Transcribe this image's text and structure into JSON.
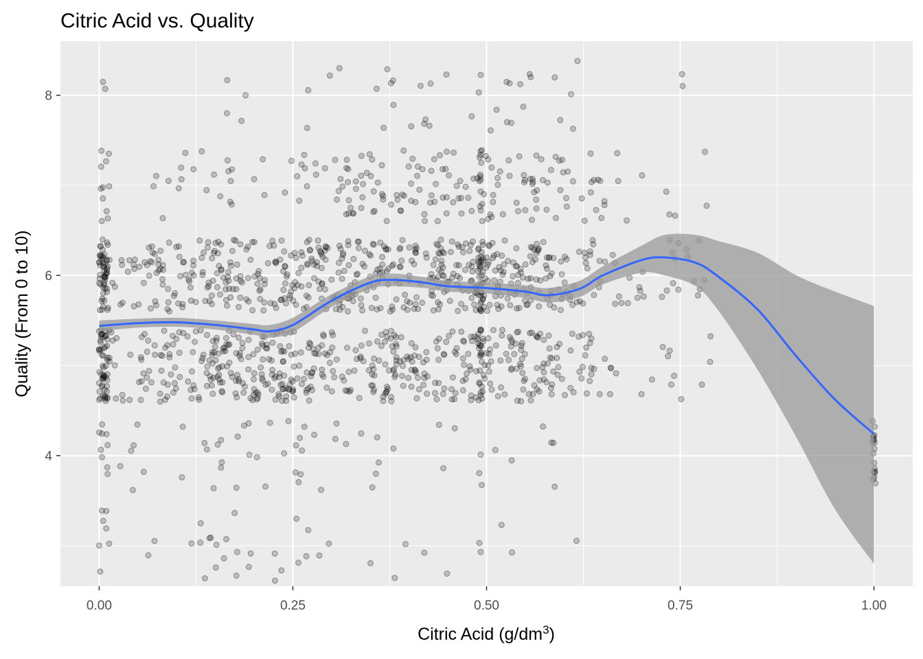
{
  "chart_data": {
    "type": "scatter",
    "title": "Citric Acid vs. Quality",
    "xlabel": "Citric Acid",
    "xlabel_unit": "(g/dm",
    "xlabel_unit_power": "3",
    "xlabel_unit_close": ")",
    "ylabel": "Quality (From 0 to 10)",
    "xlim": [
      -0.05,
      1.05
    ],
    "ylim": [
      2.55,
      8.6
    ],
    "x_ticks": [
      0.0,
      0.25,
      0.5,
      0.75,
      1.0
    ],
    "x_tick_labels": [
      "0.00",
      "0.25",
      "0.50",
      "0.75",
      "1.00"
    ],
    "y_ticks": [
      4,
      6,
      8
    ],
    "y_tick_labels": [
      "4",
      "6",
      "8"
    ],
    "grid": true,
    "panel_background": "#ebebeb",
    "grid_color": "#ffffff",
    "point_color": "#000000",
    "point_alpha": 0.2,
    "smooth_color": "#3366ff",
    "ribbon_color": "#999999",
    "series": [
      {
        "type": "smooth",
        "x": [
          0.0,
          0.05,
          0.1,
          0.15,
          0.2,
          0.22,
          0.25,
          0.3,
          0.35,
          0.38,
          0.42,
          0.45,
          0.5,
          0.55,
          0.58,
          0.62,
          0.65,
          0.7,
          0.73,
          0.77,
          0.8,
          0.85,
          0.9,
          0.95,
          1.0
        ],
        "y": [
          5.44,
          5.47,
          5.48,
          5.45,
          5.4,
          5.38,
          5.45,
          5.72,
          5.92,
          5.95,
          5.92,
          5.88,
          5.86,
          5.82,
          5.78,
          5.85,
          6.0,
          6.17,
          6.2,
          6.14,
          5.98,
          5.62,
          5.1,
          4.62,
          4.24
        ],
        "ymin": [
          5.38,
          5.42,
          5.43,
          5.4,
          5.34,
          5.31,
          5.37,
          5.65,
          5.85,
          5.88,
          5.86,
          5.82,
          5.8,
          5.75,
          5.7,
          5.76,
          5.9,
          6.03,
          6.0,
          5.88,
          5.6,
          4.95,
          4.2,
          3.4,
          2.8
        ],
        "ymax": [
          5.5,
          5.52,
          5.53,
          5.5,
          5.46,
          5.45,
          5.53,
          5.79,
          5.99,
          6.02,
          5.98,
          5.94,
          5.92,
          5.89,
          5.86,
          5.94,
          6.1,
          6.33,
          6.45,
          6.45,
          6.38,
          6.25,
          6.0,
          5.82,
          5.66
        ]
      }
    ]
  }
}
